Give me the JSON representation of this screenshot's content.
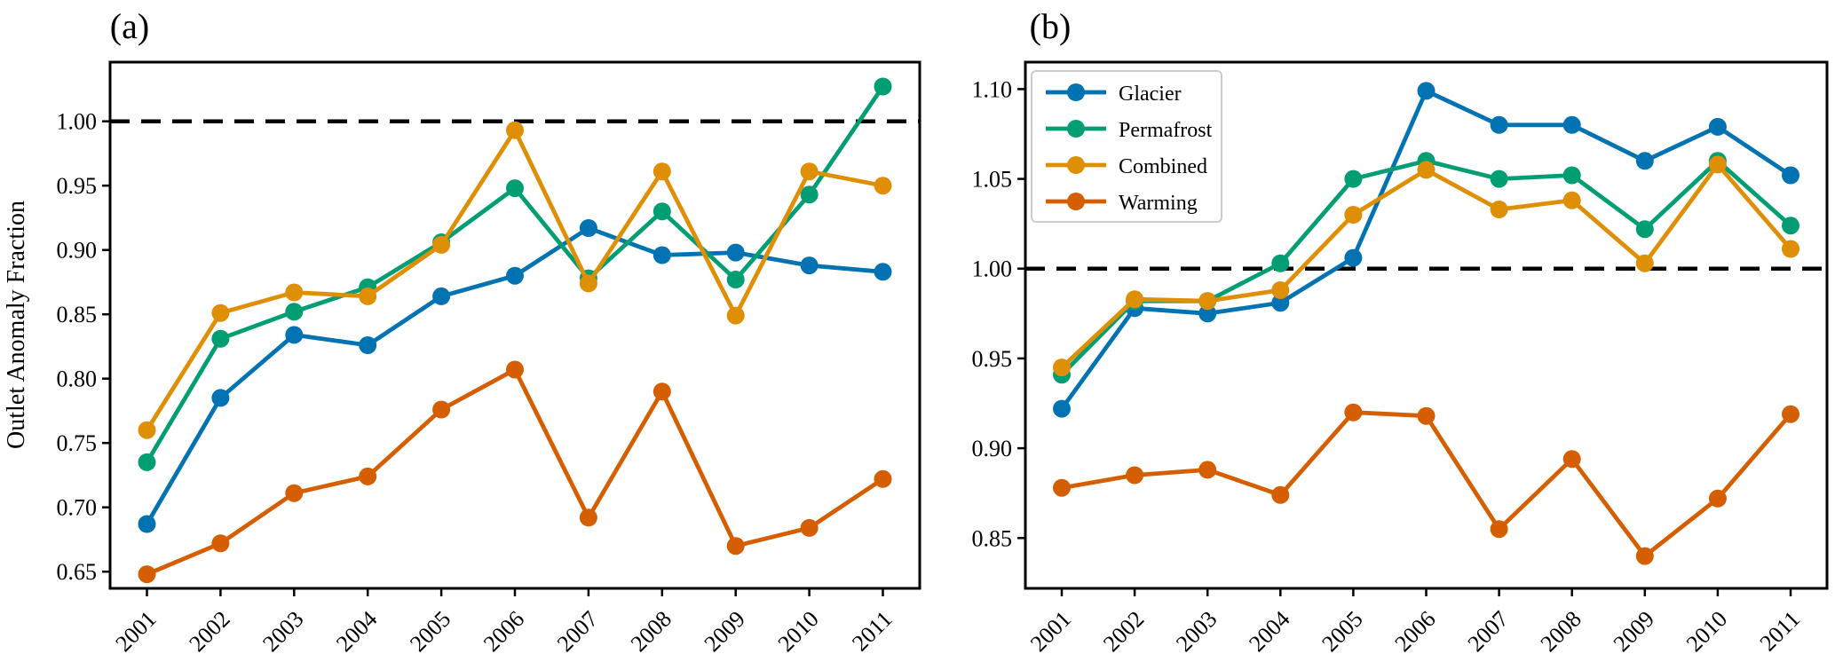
{
  "figure": {
    "background_color": "#ffffff",
    "text_color": "#000000",
    "panel_count": 2
  },
  "chart_data": [
    {
      "type": "line",
      "title": "(a)",
      "title_position": "top-left",
      "xlabel": "",
      "ylabel": "Outlet Anomaly Fraction",
      "x": [
        "2001",
        "2002",
        "2003",
        "2004",
        "2005",
        "2006",
        "2007",
        "2008",
        "2009",
        "2010",
        "2011"
      ],
      "x_tick_rotation_deg": 45,
      "ylim": [
        0.637,
        1.046
      ],
      "yticks": [
        0.65,
        0.7,
        0.75,
        0.8,
        0.85,
        0.9,
        0.95,
        1.0
      ],
      "grid": false,
      "reference_line": {
        "value": 1.0,
        "style": "dashed",
        "color": "#000000"
      },
      "legend": null,
      "series": [
        {
          "name": "Glacier",
          "color": "#0173b2",
          "marker": "circle",
          "values": [
            0.687,
            0.785,
            0.834,
            0.826,
            0.864,
            0.88,
            0.917,
            0.896,
            0.898,
            0.888,
            0.883
          ]
        },
        {
          "name": "Permafrost",
          "color": "#029e73",
          "marker": "circle",
          "values": [
            0.735,
            0.831,
            0.852,
            0.871,
            0.906,
            0.948,
            0.878,
            0.93,
            0.877,
            0.943,
            1.027
          ]
        },
        {
          "name": "Combined",
          "color": "#de8f05",
          "marker": "circle",
          "values": [
            0.76,
            0.851,
            0.867,
            0.864,
            0.904,
            0.993,
            0.874,
            0.961,
            0.849,
            0.961,
            0.95
          ]
        },
        {
          "name": "Warming",
          "color": "#d55e00",
          "marker": "circle",
          "values": [
            0.648,
            0.672,
            0.711,
            0.724,
            0.776,
            0.807,
            0.692,
            0.79,
            0.67,
            0.684,
            0.722
          ]
        }
      ]
    },
    {
      "type": "line",
      "title": "(b)",
      "title_position": "top-left",
      "xlabel": "",
      "ylabel": "",
      "x": [
        "2001",
        "2002",
        "2003",
        "2004",
        "2005",
        "2006",
        "2007",
        "2008",
        "2009",
        "2010",
        "2011"
      ],
      "x_tick_rotation_deg": 45,
      "ylim": [
        0.822,
        1.115
      ],
      "yticks": [
        0.85,
        0.9,
        0.95,
        1.0,
        1.05,
        1.1
      ],
      "grid": false,
      "reference_line": {
        "value": 1.0,
        "style": "dashed",
        "color": "#000000"
      },
      "legend": {
        "position": "top-left",
        "entries": [
          "Glacier",
          "Permafrost",
          "Combined",
          "Warming"
        ]
      },
      "series": [
        {
          "name": "Glacier",
          "color": "#0173b2",
          "marker": "circle",
          "values": [
            0.922,
            0.978,
            0.975,
            0.981,
            1.006,
            1.099,
            1.08,
            1.08,
            1.06,
            1.079,
            1.052
          ]
        },
        {
          "name": "Permafrost",
          "color": "#029e73",
          "marker": "circle",
          "values": [
            0.941,
            0.982,
            0.982,
            1.003,
            1.05,
            1.06,
            1.05,
            1.052,
            1.022,
            1.06,
            1.024
          ]
        },
        {
          "name": "Combined",
          "color": "#de8f05",
          "marker": "circle",
          "values": [
            0.945,
            0.983,
            0.982,
            0.988,
            1.03,
            1.055,
            1.033,
            1.038,
            1.003,
            1.058,
            1.011
          ]
        },
        {
          "name": "Warming",
          "color": "#d55e00",
          "marker": "circle",
          "values": [
            0.878,
            0.885,
            0.888,
            0.874,
            0.92,
            0.918,
            0.855,
            0.894,
            0.84,
            0.872,
            0.919
          ]
        }
      ]
    }
  ]
}
